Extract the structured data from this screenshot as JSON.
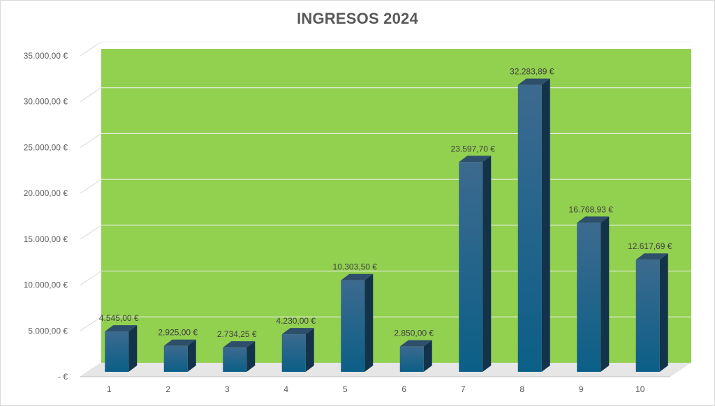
{
  "chart_data": {
    "type": "bar",
    "title": "INGRESOS 2024",
    "xlabel": "",
    "ylabel": "",
    "categories": [
      "1",
      "2",
      "3",
      "4",
      "5",
      "6",
      "7",
      "8",
      "9",
      "10"
    ],
    "values": [
      4545.0,
      2925.0,
      2734.25,
      4230.0,
      10303.5,
      2850.0,
      23597.7,
      32283.89,
      16768.93,
      12617.69
    ],
    "data_labels": [
      "4.545,00 €",
      "2.925,00 €",
      "2.734,25 €",
      "4.230,00 €",
      "10.303,50 €",
      "2.850,00 €",
      "23.597,70 €",
      "32.283,89 €",
      "16.768,93 €",
      "12.617,69 €"
    ],
    "ylim": [
      0,
      35000
    ],
    "yticks": [
      0,
      5000,
      10000,
      15000,
      20000,
      25000,
      30000,
      35000
    ],
    "ytick_labels": [
      "-  €",
      "5.000,00 €",
      "10.000,00 €",
      "15.000,00 €",
      "20.000,00 €",
      "25.000,00 €",
      "30.000,00 €",
      "35.000,00 €"
    ],
    "grid": true,
    "legend": "none",
    "style": "3d-column",
    "colors": {
      "plot_background": "#92d050",
      "bar_front_top": "#3d6a8f",
      "bar_front_bottom": "#0b5f87",
      "bar_top": "#2e4f6b",
      "bar_side": "#13334a",
      "gridline": "#f2f2f2",
      "floor": "#e6e6e6"
    }
  }
}
